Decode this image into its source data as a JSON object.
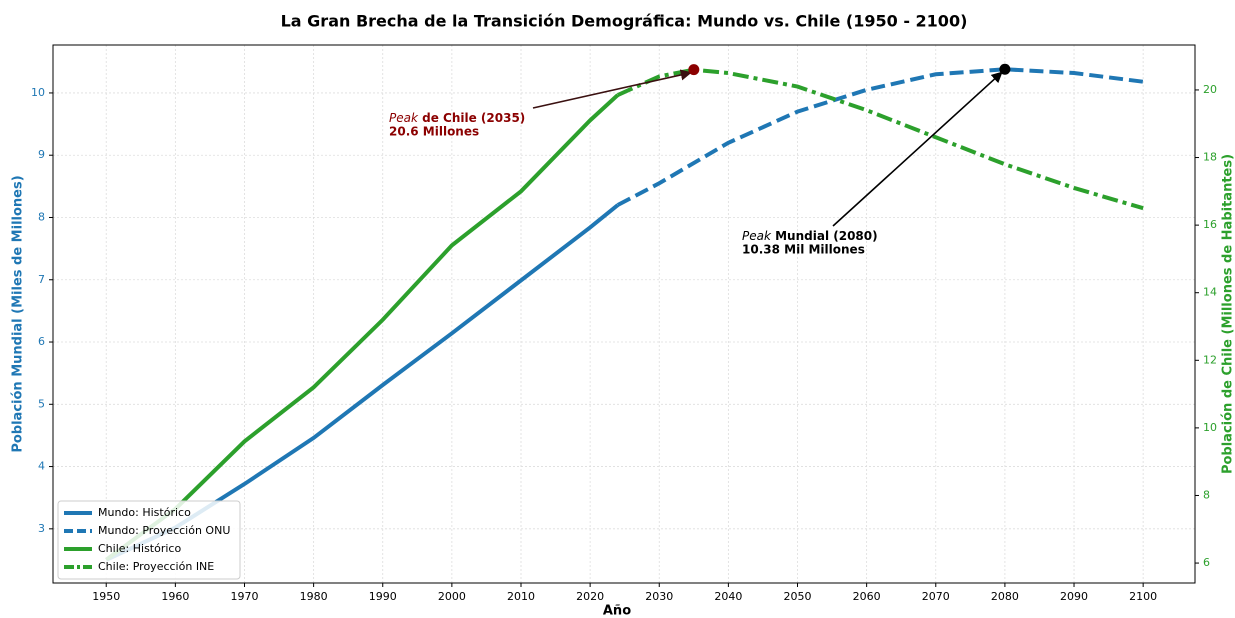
{
  "chart_data": {
    "type": "line",
    "title": "La Gran Brecha de la Transición Demográfica: Mundo vs. Chile (1950 - 2100)",
    "xlabel": "Año",
    "ylabel": "Población Mundial (Miles de Millones)",
    "y2label": "Población de Chile (Millones de Habitantes)",
    "xlim": [
      1942.3,
      2107.5
    ],
    "xticks": [
      1950,
      1960,
      1970,
      1980,
      1990,
      2000,
      2010,
      2020,
      2030,
      2040,
      2050,
      2060,
      2070,
      2080,
      2090,
      2100
    ],
    "ylim": [
      2.13,
      10.77
    ],
    "yticks": [
      3,
      4,
      5,
      6,
      7,
      8,
      9,
      10
    ],
    "y2lim": [
      5.41,
      21.33
    ],
    "y2ticks": [
      6,
      8,
      10,
      12,
      14,
      16,
      18,
      20
    ],
    "grid": true,
    "legend": "lower left",
    "series": [
      {
        "name": "Mundo: Histórico",
        "color": "#1f77b4",
        "linestyle": "solid",
        "axis": "y",
        "x": [
          1950,
          1960,
          1970,
          1980,
          1990,
          2000,
          2010,
          2020,
          2024
        ],
        "values": [
          2.5,
          3.02,
          3.72,
          4.46,
          5.31,
          6.14,
          6.99,
          7.84,
          8.2
        ]
      },
      {
        "name": "Mundo: Proyección ONU",
        "color": "#1f77b4",
        "linestyle": "dashed",
        "axis": "y",
        "x": [
          2024,
          2030,
          2040,
          2050,
          2060,
          2070,
          2080,
          2090,
          2100
        ],
        "values": [
          8.2,
          8.55,
          9.2,
          9.7,
          10.05,
          10.3,
          10.38,
          10.32,
          10.18
        ]
      },
      {
        "name": "Chile: Histórico",
        "color": "#2ca02c",
        "linestyle": "solid",
        "axis": "y2",
        "x": [
          1950,
          1960,
          1970,
          1980,
          1990,
          2000,
          2010,
          2020,
          2024
        ],
        "values": [
          6.1,
          7.6,
          9.6,
          11.2,
          13.2,
          15.4,
          17.0,
          19.1,
          19.85
        ]
      },
      {
        "name": "Chile: Proyección INE",
        "color": "#2ca02c",
        "linestyle": "dashdot",
        "axis": "y2",
        "x": [
          2024,
          2030,
          2035,
          2040,
          2050,
          2060,
          2070,
          2080,
          2090,
          2100
        ],
        "values": [
          19.85,
          20.4,
          20.6,
          20.5,
          20.1,
          19.4,
          18.6,
          17.8,
          17.1,
          16.5
        ]
      }
    ],
    "annotations": [
      {
        "prefix": "Peak",
        "label": "de Chile (2035)",
        "value_text": "20.6 Millones",
        "x": 2035,
        "y": 20.6,
        "axis": "y2",
        "color": "#8b0000"
      },
      {
        "prefix": "Peak",
        "label": "Mundial (2080)",
        "value_text": "10.38 Mil Millones",
        "x": 2080,
        "y": 10.38,
        "axis": "y",
        "color": "#000000"
      }
    ]
  }
}
